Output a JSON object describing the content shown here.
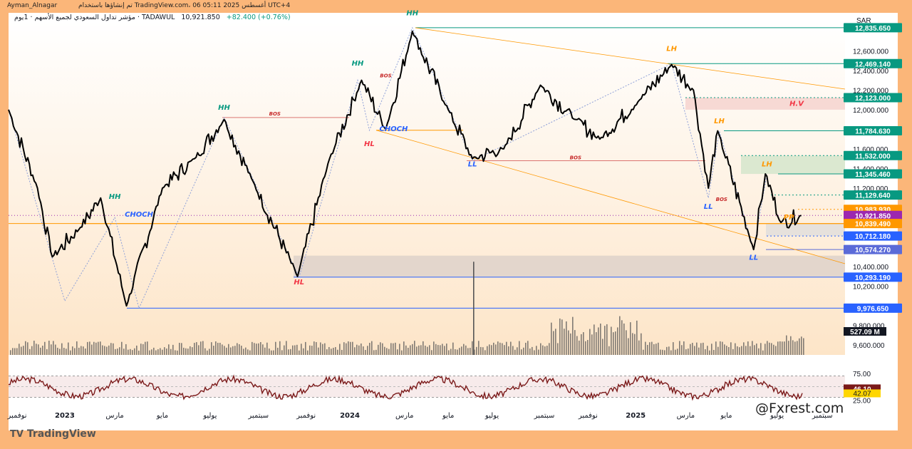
{
  "header": {
    "author": "Ayman_Alnagar",
    "published_text": "تم إنشاؤها باستخدام TradingView.com، 06 أغسطس 2025 05:11 UTC+4",
    "symbol_line": "مؤشر تداول السعودي لجميع الأسهم · 1يوم · TADAWUL",
    "last_price": "10,921.850",
    "change": "+82.400 (+0.76%)",
    "currency": "SAR"
  },
  "footer": {
    "brand": "TradingView",
    "watermark": "@Fxrest.com"
  },
  "colors": {
    "price_line": "#000000",
    "level_teal": "#089981",
    "level_blue": "#2962ff",
    "choch_orange": "#ff9800",
    "rsi_line": "#7b1a1a",
    "label_hh": "#089981",
    "label_hl": "#f23645",
    "label_lh": "#ff9800",
    "label_ll": "#2962ff",
    "volume": "#555555"
  },
  "chart_data": {
    "type": "line",
    "title": "",
    "ylabel": "",
    "ylim": [
      9500,
      12900
    ],
    "x_ticks": [
      "نوفمبر",
      "2023",
      "مارس",
      "مايو",
      "يوليو",
      "سبتمبر",
      "نوفمبر",
      "2024",
      "مارس",
      "مايو",
      "يوليو",
      "سبتمبر",
      "نوفمبر",
      "2025",
      "مارس",
      "مايو",
      "يوليو",
      "سبتمبر"
    ],
    "y_ticks": [
      "12,600.000",
      "12,400.000",
      "12,200.000",
      "12,000.000",
      "11,600.000",
      "11,400.000",
      "11,200.000",
      "10,400.000",
      "10,200.000",
      "9,800.000",
      "9,600.000"
    ],
    "price_series": {
      "name": "TASI",
      "x": [
        "2022-10-25",
        "2022-12-01",
        "2022-12-20",
        "2023-01-25",
        "2023-02-20",
        "2023-03-25",
        "2023-05-10",
        "2023-06-20",
        "2023-07-28",
        "2023-09-01",
        "2023-10-30",
        "2023-12-10",
        "2024-01-20",
        "2024-02-20",
        "2024-03-25",
        "2024-05-10",
        "2024-06-10",
        "2024-07-20",
        "2024-09-05",
        "2024-10-20",
        "2024-11-20",
        "2025-01-10",
        "2025-02-20",
        "2025-03-20",
        "2025-04-08",
        "2025-04-20",
        "2025-06-05",
        "2025-06-20",
        "2025-07-10",
        "2025-08-05"
      ],
      "values": [
        12000,
        11200,
        10500,
        10800,
        11100,
        10000,
        11200,
        11500,
        11900,
        11300,
        10300,
        11500,
        12300,
        11800,
        12800,
        12000,
        11500,
        11600,
        12250,
        11900,
        11700,
        12100,
        12460,
        12200,
        11200,
        11784,
        10574,
        11345,
        10850,
        10921
      ]
    },
    "levels": [
      {
        "label": "12,835.650",
        "value": 12835.65,
        "color": "#089981"
      },
      {
        "label": "12,469.140",
        "value": 12469.14,
        "color": "#089981"
      },
      {
        "label": "12,123.000",
        "value": 12123.0,
        "color": "#089981"
      },
      {
        "label": "11,784.630",
        "value": 11784.63,
        "color": "#089981"
      },
      {
        "label": "11,532.000",
        "value": 11532.0,
        "color": "#089981"
      },
      {
        "label": "11,345.460",
        "value": 11345.46,
        "color": "#089981"
      },
      {
        "label": "11,129.640",
        "value": 11129.64,
        "color": "#089981"
      },
      {
        "label": "10,983.930",
        "value": 10983.93,
        "color": "#ff9800"
      },
      {
        "label": "10,921.850",
        "value": 10921.85,
        "color": "#9c27b0"
      },
      {
        "label": "10,839.490",
        "value": 10839.49,
        "color": "#ff9800"
      },
      {
        "label": "10,712.180",
        "value": 10712.18,
        "color": "#2962ff"
      },
      {
        "label": "10,574.270",
        "value": 10574.27,
        "color": "#5b6bd8"
      },
      {
        "label": "10,293.190",
        "value": 10293.19,
        "color": "#2962ff"
      },
      {
        "label": "9,976.650",
        "value": 9976.65,
        "color": "#2962ff"
      }
    ],
    "volume_label": "527.09 M",
    "annotations": [
      {
        "text": "HH",
        "x": "2023-03-10",
        "y": 11090
      },
      {
        "text": "HH",
        "x": "2023-07-28",
        "y": 12000
      },
      {
        "text": "HH",
        "x": "2024-01-15",
        "y": 12450
      },
      {
        "text": "HH",
        "x": "2024-03-25",
        "y": 12960
      },
      {
        "text": "LH",
        "x": "2025-02-20",
        "y": 12600
      },
      {
        "text": "LH",
        "x": "2025-04-22",
        "y": 11860
      },
      {
        "text": "LH",
        "x": "2025-06-22",
        "y": 11420
      },
      {
        "text": "HL",
        "x": "2023-11-01",
        "y": 10220
      },
      {
        "text": "HL",
        "x": "2024-01-30",
        "y": 11630
      },
      {
        "text": "LL",
        "x": "2024-06-10",
        "y": 11420
      },
      {
        "text": "LL",
        "x": "2025-04-08",
        "y": 10990
      },
      {
        "text": "LL",
        "x": "2025-06-05",
        "y": 10470
      },
      {
        "text": "CHOCH",
        "x": "2023-04-10",
        "y": 10910
      },
      {
        "text": "CHOCH",
        "x": "2024-03-01",
        "y": 11780
      },
      {
        "text": "BOS",
        "x": "2023-10-01",
        "y": 11940
      },
      {
        "text": "BOS",
        "x": "2024-02-20",
        "y": 12330
      },
      {
        "text": "BOS",
        "x": "2024-10-20",
        "y": 11495
      },
      {
        "text": "BOS",
        "x": "2025-04-25",
        "y": 11070
      },
      {
        "text": "PP",
        "x": "2025-07-20",
        "y": 10880
      },
      {
        "text": "H.V",
        "x": "2025-07-30",
        "y": 12040
      }
    ],
    "rsi": {
      "y_ticks": [
        "75.00",
        "25.00"
      ],
      "value_label": "46.10",
      "ma_label": "42.07",
      "upper": 70,
      "lower": 30
    }
  }
}
